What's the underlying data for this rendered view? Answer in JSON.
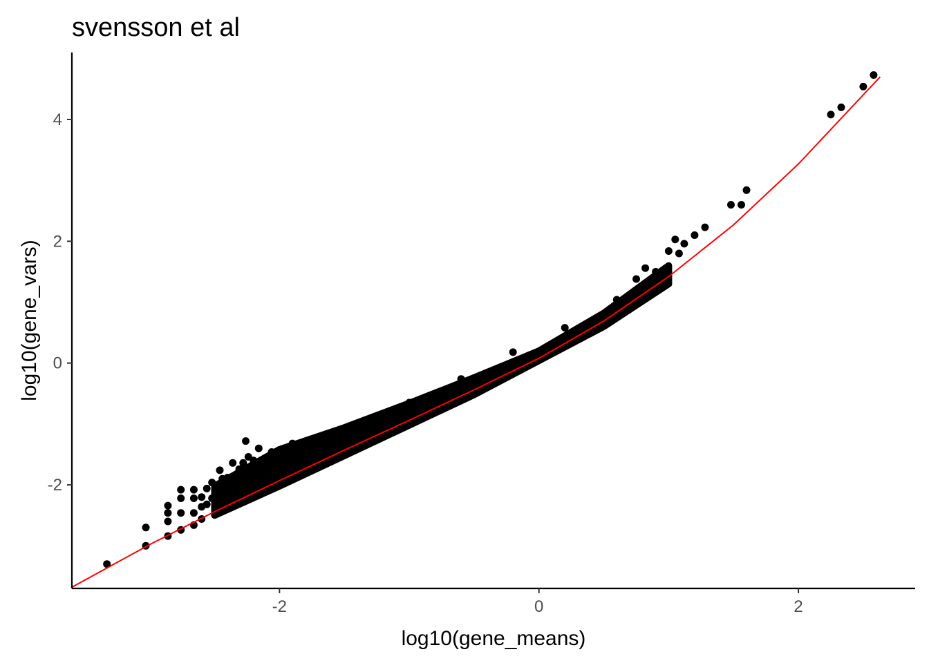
{
  "chart_data": {
    "type": "scatter",
    "title": "svensson et al",
    "xlabel": "log10(gene_means)",
    "ylabel": "log10(gene_vars)",
    "xlim": [
      -3.6,
      2.9
    ],
    "ylim": [
      -3.7,
      5.1
    ],
    "x_ticks": [
      "-2",
      "0",
      "2"
    ],
    "x_tick_values": [
      -2,
      0,
      2
    ],
    "y_ticks": [
      "-2",
      "0",
      "2",
      "4"
    ],
    "y_tick_values": [
      -2,
      0,
      2,
      4
    ],
    "grid": false,
    "legend": "none",
    "point_color": "#000000",
    "fit_line_color": "#ff0000",
    "fit_line": {
      "x": [
        -3.6,
        -3.0,
        -2.5,
        -2.0,
        -1.5,
        -1.0,
        -0.5,
        0.0,
        0.5,
        1.0,
        1.5,
        2.0,
        2.63
      ],
      "y": [
        -3.68,
        -2.98,
        -2.44,
        -1.93,
        -1.43,
        -0.94,
        -0.44,
        0.08,
        0.69,
        1.42,
        2.27,
        3.27,
        4.7
      ]
    },
    "points": {
      "x": [
        -3.33,
        -3.03,
        -3.03,
        -2.86,
        -2.86,
        -2.86,
        -2.86,
        -2.76,
        -2.76,
        -2.76,
        -2.76,
        -2.66,
        -2.66,
        -2.66,
        -2.66,
        -2.6,
        -2.6,
        -2.6,
        -2.56,
        -2.56,
        -2.52,
        -2.52,
        -2.48,
        -2.46,
        -2.44,
        -2.4,
        -2.36,
        -2.31,
        -2.28,
        -2.26,
        -2.24,
        -2.2,
        -2.16,
        -2.06,
        -1.98,
        -1.9,
        -1.8,
        -1.65,
        -1.4,
        -1.0,
        -0.6,
        -0.2,
        0.2,
        0.6,
        0.75,
        0.82,
        0.9,
        1.0,
        1.05,
        1.08,
        1.12,
        1.2,
        1.28,
        1.48,
        1.56,
        1.6,
        2.25,
        2.33,
        2.5,
        2.58
      ],
      "y": [
        -3.3,
        -3.0,
        -2.7,
        -2.84,
        -2.6,
        -2.46,
        -2.34,
        -2.74,
        -2.46,
        -2.22,
        -2.08,
        -2.66,
        -2.46,
        -2.22,
        -2.08,
        -2.56,
        -2.36,
        -2.2,
        -2.32,
        -2.06,
        -2.22,
        -1.96,
        -2.12,
        -1.76,
        -1.9,
        -1.88,
        -1.64,
        -1.74,
        -1.64,
        -1.28,
        -1.54,
        -1.6,
        -1.4,
        -1.46,
        -1.64,
        -1.32,
        -1.38,
        -1.22,
        -1.08,
        -0.65,
        -0.26,
        0.18,
        0.58,
        1.04,
        1.38,
        1.56,
        1.5,
        1.84,
        2.03,
        1.8,
        1.96,
        2.1,
        2.23,
        2.6,
        2.6,
        2.84,
        4.08,
        4.2,
        4.54,
        4.73
      ]
    },
    "band": {
      "lower": {
        "x": [
          -2.5,
          -2.0,
          -1.5,
          -1.0,
          -0.5,
          0.0,
          0.5,
          1.0
        ],
        "y": [
          -2.5,
          -2.02,
          -1.52,
          -1.02,
          -0.52,
          0.04,
          0.6,
          1.3
        ]
      },
      "upper": {
        "x": [
          -2.5,
          -2.0,
          -1.5,
          -1.0,
          -0.5,
          0.0,
          0.5,
          1.0
        ],
        "y": [
          -2.02,
          -1.42,
          -1.06,
          -0.66,
          -0.24,
          0.2,
          0.82,
          1.6
        ]
      }
    }
  }
}
